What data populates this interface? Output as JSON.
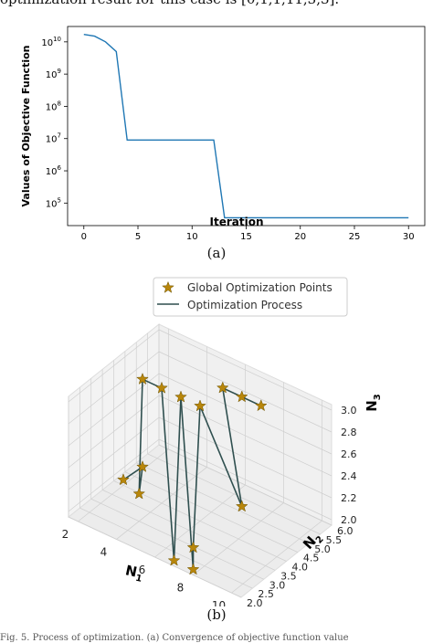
{
  "header_text": "optimization result for this case is [0,1,1,11,3,3].",
  "chart_data": [
    {
      "type": "line",
      "ylabel": "Values of Objective Function",
      "xlabel": "Iteration",
      "yscale": "log",
      "xlim": [
        -1.5,
        31.5
      ],
      "ylim": [
        20000,
        30000000000
      ],
      "xticks": [
        0,
        5,
        10,
        15,
        20,
        25,
        30
      ],
      "xtick_labels": [
        "0",
        "5",
        "10",
        "15",
        "20",
        "25",
        "30"
      ],
      "yticks": [
        100000,
        1000000,
        10000000,
        100000000,
        1000000000,
        10000000000
      ],
      "ytick_labels": [
        {
          "base": "10",
          "exp": "5"
        },
        {
          "base": "10",
          "exp": "6"
        },
        {
          "base": "10",
          "exp": "7"
        },
        {
          "base": "10",
          "exp": "8"
        },
        {
          "base": "10",
          "exp": "9"
        },
        {
          "base": "10",
          "exp": "10"
        }
      ],
      "grid": false,
      "color": "#1f77b4",
      "x": [
        0,
        1,
        2,
        3,
        4,
        5,
        6,
        7,
        8,
        9,
        10,
        11,
        12,
        13,
        14,
        15,
        16,
        17,
        18,
        19,
        20,
        21,
        22,
        23,
        24,
        25,
        26,
        27,
        28,
        29,
        30
      ],
      "y": [
        17000000000,
        15000000000,
        10000000000,
        5000000000,
        9000000,
        9000000,
        9000000,
        9000000,
        9000000,
        9000000,
        9000000,
        9000000,
        9000000,
        35000,
        35000,
        35000,
        35000,
        35000,
        35000,
        35000,
        35000,
        35000,
        35000,
        35000,
        35000,
        35000,
        35000,
        35000,
        35000,
        35000,
        35000
      ]
    },
    {
      "type": "scatter3d",
      "xlabel": {
        "base": "N",
        "sub": "1"
      },
      "ylabel": {
        "base": "N",
        "sub": "2"
      },
      "zlabel": {
        "base": "N",
        "sub": "3"
      },
      "xlim": [
        1.5,
        10.5
      ],
      "ylim": [
        2.0,
        6.0
      ],
      "zlim": [
        1.95,
        3.05
      ],
      "xticks": [
        2,
        4,
        6,
        8,
        10
      ],
      "xtick_labels": [
        "2",
        "4",
        "6",
        "8",
        "10"
      ],
      "yticks": [
        2.0,
        2.5,
        3.0,
        3.5,
        4.0,
        4.5,
        5.0,
        5.5,
        6.0
      ],
      "ytick_labels": [
        "2.0",
        "2.5",
        "3.0",
        "3.5",
        "4.0",
        "4.5",
        "5.0",
        "5.5",
        "6.0"
      ],
      "zticks": [
        2.0,
        2.2,
        2.4,
        2.6,
        2.8,
        3.0
      ],
      "ztick_labels": [
        "2.0",
        "2.2",
        "2.4",
        "2.6",
        "2.8",
        "3.0"
      ],
      "legend": {
        "placement": "top-center",
        "entries": [
          {
            "label": "Global Optimization Points",
            "marker": "star",
            "color": "#b8860b"
          },
          {
            "label": "Optimization Process",
            "marker": "line",
            "color": "#2f4f4f"
          }
        ]
      },
      "points": [
        {
          "x": 2,
          "y": 4,
          "z": 2
        },
        {
          "x": 3,
          "y": 4,
          "z": 2.2
        },
        {
          "x": 4,
          "y": 3,
          "z": 2.2
        },
        {
          "x": 3,
          "y": 4,
          "z": 3
        },
        {
          "x": 4,
          "y": 4,
          "z": 3
        },
        {
          "x": 7,
          "y": 2,
          "z": 2
        },
        {
          "x": 5,
          "y": 4,
          "z": 3
        },
        {
          "x": 8,
          "y": 2,
          "z": 2
        },
        {
          "x": 8,
          "y": 2,
          "z": 2.2
        },
        {
          "x": 6,
          "y": 4,
          "z": 3
        },
        {
          "x": 7,
          "y": 5,
          "z": 2
        },
        {
          "x": 6,
          "y": 5,
          "z": 3
        },
        {
          "x": 7,
          "y": 5,
          "z": 3
        },
        {
          "x": 8,
          "y": 5,
          "z": 3
        }
      ]
    }
  ],
  "caption_a": "(a)",
  "caption_b": "(b)",
  "footer_text": "Fig. 5.  Process of optimization. (a) Convergence of objective function value"
}
